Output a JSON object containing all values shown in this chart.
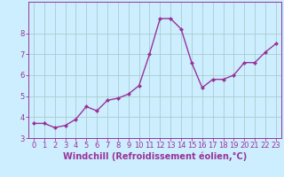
{
  "x": [
    0,
    1,
    2,
    3,
    4,
    5,
    6,
    7,
    8,
    9,
    10,
    11,
    12,
    13,
    14,
    15,
    16,
    17,
    18,
    19,
    20,
    21,
    22,
    23
  ],
  "y": [
    3.7,
    3.7,
    3.5,
    3.6,
    3.9,
    4.5,
    4.3,
    4.8,
    4.9,
    5.1,
    5.5,
    7.0,
    8.7,
    8.7,
    8.2,
    6.6,
    5.4,
    5.8,
    5.8,
    6.0,
    6.6,
    6.6,
    7.1,
    7.5
  ],
  "line_color": "#993399",
  "marker": "D",
  "marker_size": 2.0,
  "linewidth": 1.0,
  "bg_color": "#cceeff",
  "grid_color": "#aacccc",
  "xlabel": "Windchill (Refroidissement éolien,°C)",
  "xlabel_color": "#993399",
  "ylim": [
    3.0,
    9.5
  ],
  "xlim": [
    -0.5,
    23.5
  ],
  "yticks": [
    3,
    4,
    5,
    6,
    7,
    8
  ],
  "xtick_labels": [
    "0",
    "1",
    "2",
    "3",
    "4",
    "5",
    "6",
    "7",
    "8",
    "9",
    "10",
    "11",
    "12",
    "13",
    "14",
    "15",
    "16",
    "17",
    "18",
    "19",
    "20",
    "21",
    "22",
    "23"
  ],
  "tick_color": "#993399",
  "spine_color": "#993399",
  "font_size_xlabel": 7.0,
  "font_size_ticks": 6.0
}
